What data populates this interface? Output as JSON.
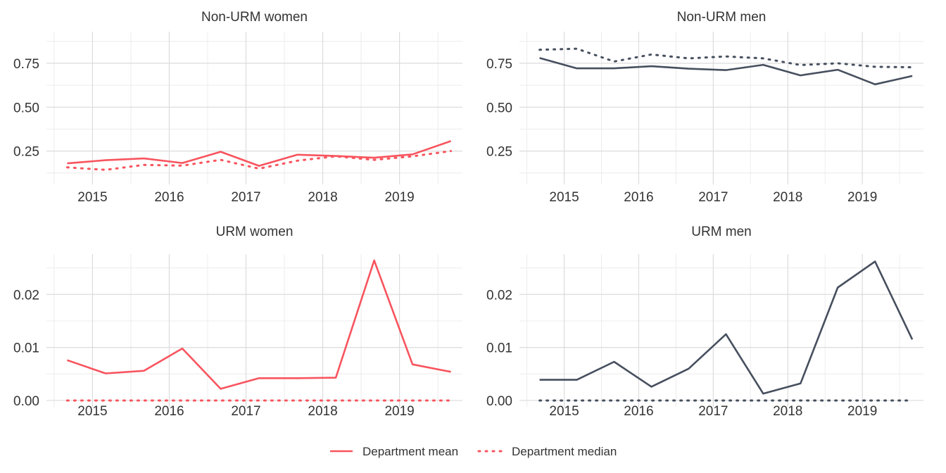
{
  "chart_data": [
    {
      "type": "line",
      "title": "Non-URM women",
      "color": "#f8545e",
      "x": [
        2014.67,
        2015.17,
        2015.67,
        2016.17,
        2016.67,
        2017.17,
        2017.67,
        2018.17,
        2018.67,
        2019.17,
        2019.67
      ],
      "xticks": [
        "2015",
        "2016",
        "2017",
        "2018",
        "2019"
      ],
      "yticks": [
        "0.25",
        "0.50",
        "0.75"
      ],
      "ylim": [
        0.06,
        0.93
      ],
      "xlim": [
        2014.4,
        2019.67
      ],
      "series": [
        {
          "name": "Department mean",
          "style": "solid",
          "values": [
            0.18,
            0.198,
            0.208,
            0.182,
            0.246,
            0.166,
            0.229,
            0.222,
            0.212,
            0.231,
            0.307
          ]
        },
        {
          "name": "Department median",
          "style": "dotted",
          "values": [
            0.157,
            0.143,
            0.171,
            0.167,
            0.2,
            0.15,
            0.195,
            0.22,
            0.2,
            0.22,
            0.25
          ]
        }
      ]
    },
    {
      "type": "line",
      "title": "Non-URM men",
      "color": "#464f5e",
      "x": [
        2014.67,
        2015.17,
        2015.67,
        2016.17,
        2016.67,
        2017.17,
        2017.67,
        2018.17,
        2018.67,
        2019.17,
        2019.67
      ],
      "xticks": [
        "2015",
        "2016",
        "2017",
        "2018",
        "2019"
      ],
      "yticks": [
        "0.25",
        "0.50",
        "0.75"
      ],
      "ylim": [
        0.06,
        0.93
      ],
      "xlim": [
        2014.4,
        2019.67
      ],
      "series": [
        {
          "name": "Department mean",
          "style": "solid",
          "values": [
            0.78,
            0.721,
            0.721,
            0.733,
            0.719,
            0.711,
            0.741,
            0.681,
            0.713,
            0.63,
            0.678
          ]
        },
        {
          "name": "Department median",
          "style": "dotted",
          "values": [
            0.827,
            0.833,
            0.76,
            0.8,
            0.778,
            0.789,
            0.778,
            0.74,
            0.75,
            0.73,
            0.727
          ]
        }
      ]
    },
    {
      "type": "line",
      "title": "URM women",
      "color": "#f8545e",
      "x": [
        2014.67,
        2015.17,
        2015.67,
        2016.17,
        2016.67,
        2017.17,
        2017.67,
        2018.17,
        2018.67,
        2019.17,
        2019.67
      ],
      "xticks": [
        "2015",
        "2016",
        "2017",
        "2018",
        "2019"
      ],
      "yticks": [
        "0.00",
        "0.01",
        "0.02"
      ],
      "ylim": [
        -0.0012,
        0.0276
      ],
      "xlim": [
        2014.4,
        2019.67
      ],
      "series": [
        {
          "name": "Department mean",
          "style": "solid",
          "values": [
            0.0076,
            0.0051,
            0.0056,
            0.0098,
            0.0022,
            0.0042,
            0.0042,
            0.0043,
            0.0264,
            0.0068,
            0.0054
          ]
        },
        {
          "name": "Department median",
          "style": "dotted",
          "values": [
            0,
            0,
            0,
            0,
            0,
            0,
            0,
            0,
            0,
            0,
            0
          ]
        }
      ]
    },
    {
      "type": "line",
      "title": "URM men",
      "color": "#464f5e",
      "x": [
        2014.67,
        2015.17,
        2015.67,
        2016.17,
        2016.67,
        2017.17,
        2017.67,
        2018.17,
        2018.67,
        2019.17,
        2019.67
      ],
      "xticks": [
        "2015",
        "2016",
        "2017",
        "2018",
        "2019"
      ],
      "yticks": [
        "0.00",
        "0.01",
        "0.02"
      ],
      "ylim": [
        -0.0012,
        0.0276
      ],
      "xlim": [
        2014.4,
        2019.67
      ],
      "series": [
        {
          "name": "Department mean",
          "style": "solid",
          "values": [
            0.0039,
            0.0039,
            0.0073,
            0.0026,
            0.006,
            0.0125,
            0.0013,
            0.0032,
            0.0213,
            0.0262,
            0.0115
          ]
        },
        {
          "name": "Department median",
          "style": "dotted",
          "values": [
            0,
            0,
            0,
            0,
            0,
            0,
            0,
            0,
            0,
            0,
            0
          ]
        }
      ]
    }
  ],
  "legend": {
    "placement": "bottom",
    "color": "#f8545e",
    "items": [
      {
        "label": "Department mean",
        "style": "solid"
      },
      {
        "label": "Department median",
        "style": "dotted"
      }
    ]
  }
}
